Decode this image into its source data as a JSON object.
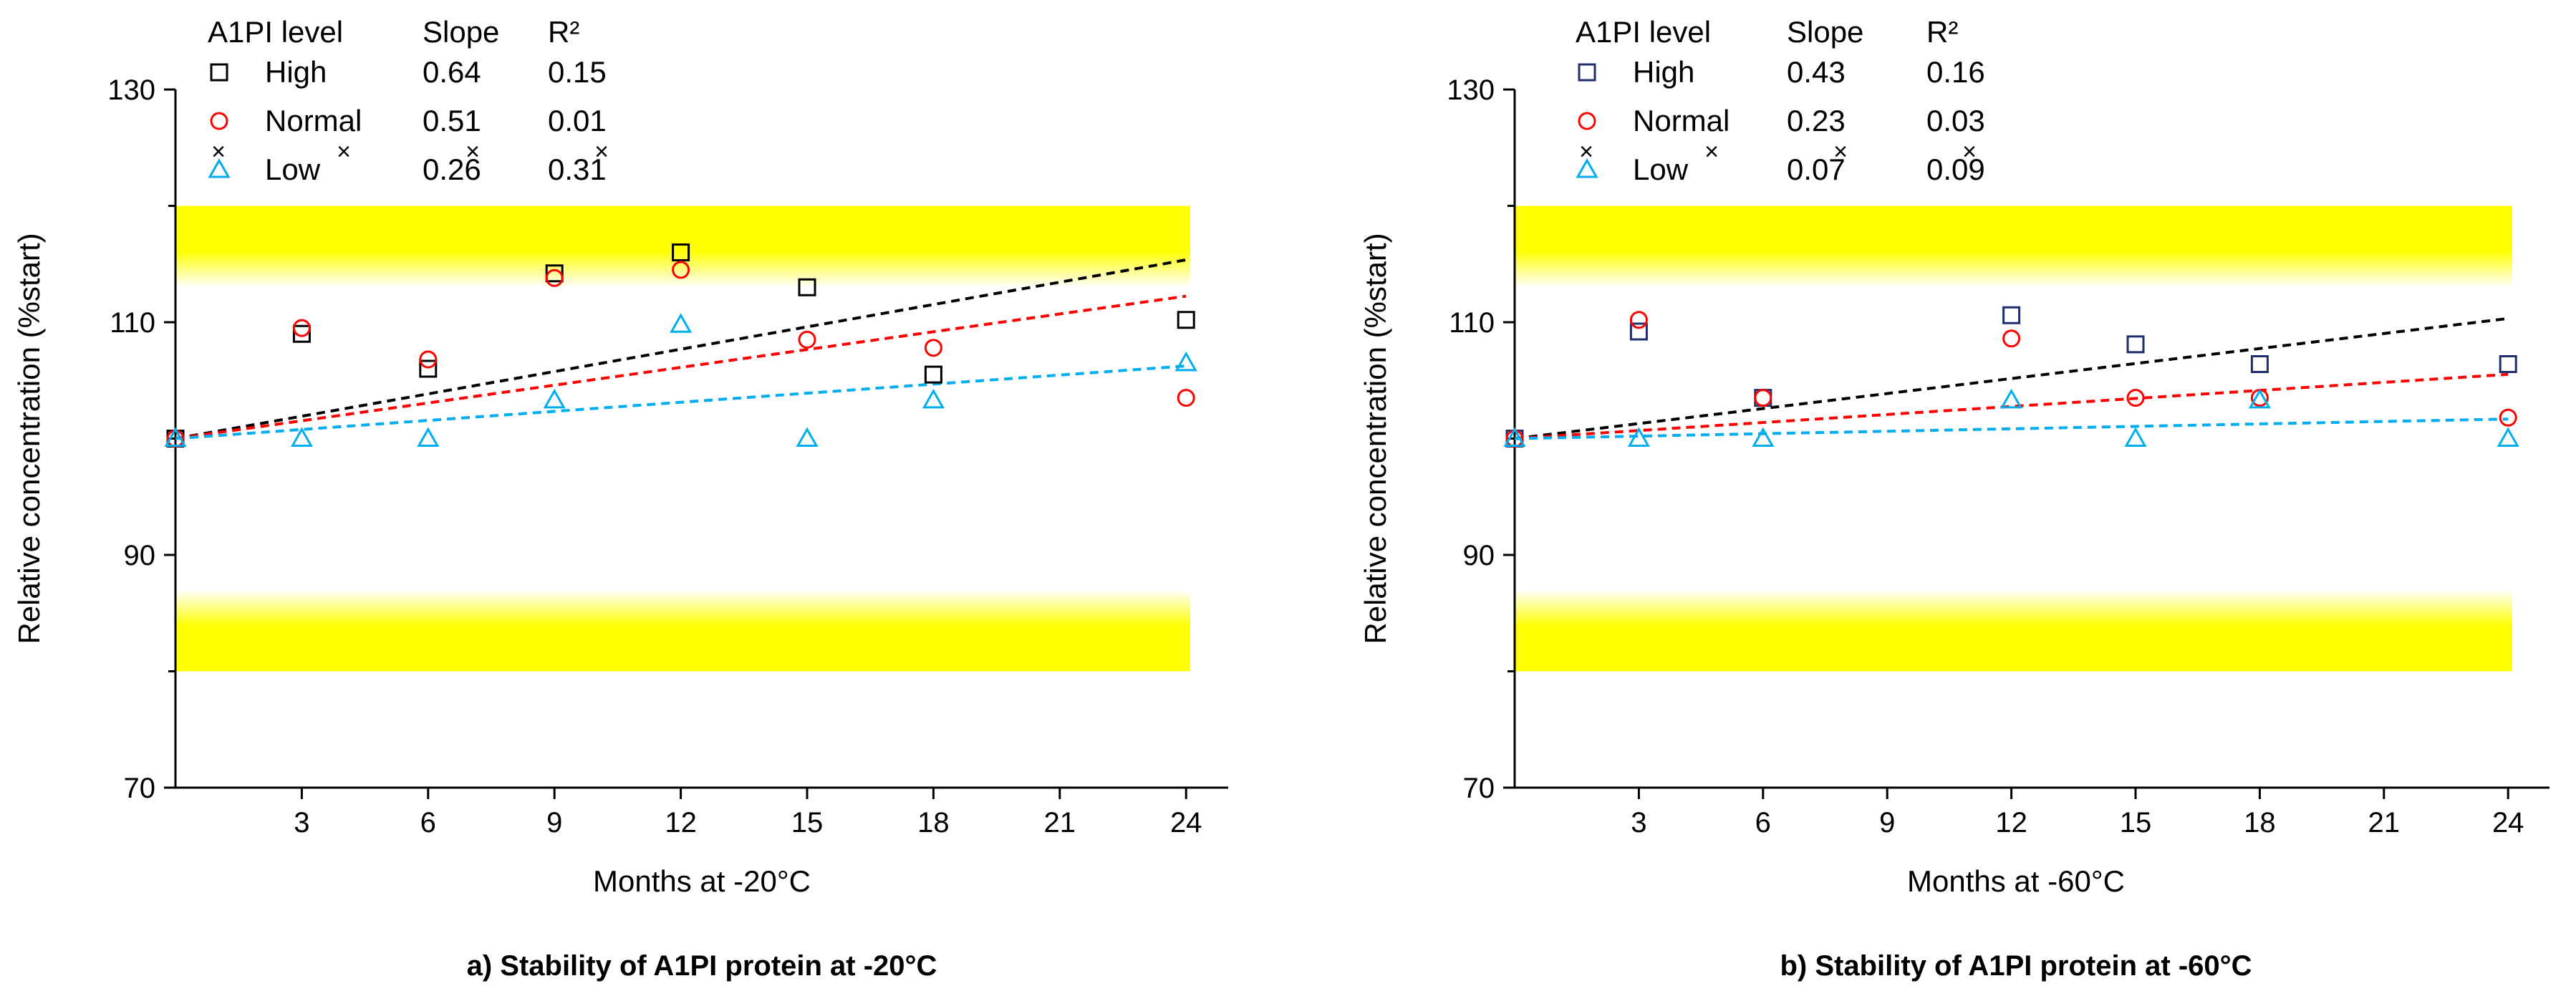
{
  "chart_data": [
    {
      "type": "scatter",
      "panel": "a",
      "caption": "a) Stability of A1PI protein at -20°C",
      "xlabel": "Months at -20°C",
      "ylabel": "Relative concentration (%start)",
      "xlim": [
        0,
        25
      ],
      "ylim": [
        70,
        130
      ],
      "x_ticks": [
        3,
        6,
        9,
        12,
        15,
        18,
        21,
        24
      ],
      "y_ticks": [
        70,
        90,
        110,
        130
      ],
      "y_minor_ticks": [
        80,
        100,
        120
      ],
      "shaded_bands": [
        {
          "from": 80,
          "to": 87,
          "color": "#ffff00",
          "fade": "up"
        },
        {
          "from": 113,
          "to": 120,
          "color": "#ffff00",
          "fade": "down"
        }
      ],
      "legend": {
        "headers": {
          "level": "A1PI level",
          "slope": "Slope",
          "r2": "R²"
        },
        "x_markers": [
          "×",
          "×",
          "×"
        ]
      },
      "series": [
        {
          "name": "High",
          "marker": "square",
          "color": "#000000",
          "fit_color": "#000000",
          "slope": "0.64",
          "r2": "0.15",
          "intercept": 100,
          "slope_value": 0.64,
          "points": [
            [
              0,
              100
            ],
            [
              3,
              109
            ],
            [
              6,
              106
            ],
            [
              9,
              114.2
            ],
            [
              12,
              116
            ],
            [
              15,
              113
            ],
            [
              18,
              105.5
            ],
            [
              24,
              110.2
            ]
          ]
        },
        {
          "name": "Normal",
          "marker": "circle",
          "color": "#ff0000",
          "fit_color": "#ff0000",
          "slope": "0.51",
          "r2": "0.01",
          "intercept": 100,
          "slope_value": 0.51,
          "points": [
            [
              0,
              100
            ],
            [
              3,
              109.5
            ],
            [
              6,
              106.8
            ],
            [
              9,
              113.8
            ],
            [
              12,
              114.5
            ],
            [
              15,
              108.5
            ],
            [
              18,
              107.8
            ],
            [
              24,
              103.5
            ]
          ]
        },
        {
          "name": "Low",
          "marker": "triangle",
          "color": "#00aeef",
          "fit_color": "#00aeef",
          "slope": "0.26",
          "r2": "0.31",
          "intercept": 100,
          "slope_value": 0.26,
          "points": [
            [
              0,
              100
            ],
            [
              3,
              100
            ],
            [
              6,
              100
            ],
            [
              9,
              103.3
            ],
            [
              12,
              109.8
            ],
            [
              15,
              100
            ],
            [
              18,
              103.3
            ],
            [
              24,
              106.5
            ]
          ]
        }
      ]
    },
    {
      "type": "scatter",
      "panel": "b",
      "caption": "b) Stability of A1PI protein at -60°C",
      "xlabel": "Months at -60°C",
      "ylabel": "Relative concentration (%start)",
      "xlim": [
        0,
        25
      ],
      "ylim": [
        70,
        130
      ],
      "x_ticks": [
        3,
        6,
        9,
        12,
        15,
        18,
        21,
        24
      ],
      "y_ticks": [
        70,
        90,
        110,
        130
      ],
      "y_minor_ticks": [
        80,
        100,
        120
      ],
      "shaded_bands": [
        {
          "from": 80,
          "to": 87,
          "color": "#ffff00",
          "fade": "up"
        },
        {
          "from": 113,
          "to": 120,
          "color": "#ffff00",
          "fade": "down"
        }
      ],
      "legend": {
        "headers": {
          "level": "A1PI level",
          "slope": "Slope",
          "r2": "R²"
        },
        "x_markers": [
          "×",
          "×",
          "×"
        ]
      },
      "series": [
        {
          "name": "High",
          "marker": "square",
          "color": "#1f2d6e",
          "fit_color": "#000000",
          "slope": "0.43",
          "r2": "0.16",
          "intercept": 100,
          "slope_value": 0.43,
          "points": [
            [
              0,
              100
            ],
            [
              3,
              109.2
            ],
            [
              6,
              103.5
            ],
            [
              12,
              110.6
            ],
            [
              15,
              108.1
            ],
            [
              18,
              106.4
            ],
            [
              24,
              106.4
            ]
          ]
        },
        {
          "name": "Normal",
          "marker": "circle",
          "color": "#ff0000",
          "fit_color": "#ff0000",
          "slope": "0.23",
          "r2": "0.03",
          "intercept": 100,
          "slope_value": 0.23,
          "points": [
            [
              0,
              100
            ],
            [
              3,
              110.2
            ],
            [
              6,
              103.5
            ],
            [
              12,
              108.6
            ],
            [
              15,
              103.5
            ],
            [
              18,
              103.5
            ],
            [
              24,
              101.8
            ]
          ]
        },
        {
          "name": "Low",
          "marker": "triangle",
          "color": "#00aeef",
          "fit_color": "#00aeef",
          "slope": "0.07",
          "r2": "0.09",
          "intercept": 100,
          "slope_value": 0.07,
          "points": [
            [
              0,
              100
            ],
            [
              3,
              100
            ],
            [
              6,
              100
            ],
            [
              12,
              103.3
            ],
            [
              15,
              100
            ],
            [
              18,
              103.3
            ],
            [
              24,
              100
            ]
          ]
        }
      ]
    }
  ]
}
